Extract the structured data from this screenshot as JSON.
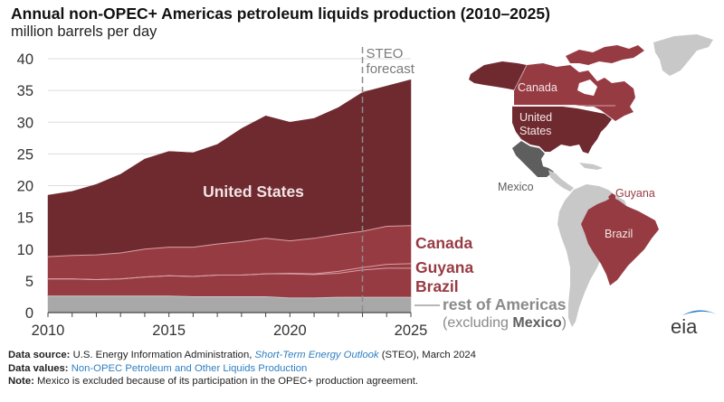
{
  "header": {
    "title": "Annual non-OPEC+ Americas petroleum liquids production (2010–2025)",
    "subtitle": "million barrels per day"
  },
  "chart_data": {
    "type": "area",
    "stacked": true,
    "title": "Annual non-OPEC+ Americas petroleum liquids production (2010–2025)",
    "ylabel": "million barrels per day",
    "xlabel": "",
    "xlim": [
      2010,
      2025
    ],
    "ylim": [
      0,
      40
    ],
    "x_ticks": [
      2010,
      2015,
      2020,
      2025
    ],
    "y_ticks": [
      0,
      5,
      10,
      15,
      20,
      25,
      30,
      35,
      40
    ],
    "grid": true,
    "forecast_start": 2023,
    "forecast_label_line1": "STEO",
    "forecast_label_line2": "forecast",
    "x": [
      2010,
      2011,
      2012,
      2013,
      2014,
      2015,
      2016,
      2017,
      2018,
      2019,
      2020,
      2021,
      2022,
      2023,
      2024,
      2025
    ],
    "series": [
      {
        "name": "rest of Americas",
        "name_line2_prefix": "(excluding ",
        "name_line2_bold": "Mexico",
        "name_line2_suffix": ")",
        "color": "#a8a8a8",
        "values": [
          2.6,
          2.6,
          2.6,
          2.6,
          2.6,
          2.6,
          2.5,
          2.5,
          2.5,
          2.5,
          2.3,
          2.3,
          2.4,
          2.4,
          2.4,
          2.4
        ]
      },
      {
        "name": "Brazil",
        "color": "#973b43",
        "values": [
          2.7,
          2.7,
          2.6,
          2.7,
          3.0,
          3.2,
          3.2,
          3.4,
          3.4,
          3.6,
          3.8,
          3.7,
          3.8,
          4.3,
          4.6,
          4.6
        ]
      },
      {
        "name": "Guyana",
        "color": "#973b43",
        "values": [
          0,
          0,
          0,
          0,
          0,
          0,
          0,
          0,
          0,
          0,
          0.1,
          0.1,
          0.3,
          0.4,
          0.6,
          0.7
        ]
      },
      {
        "name": "Canada",
        "color": "#973b43",
        "values": [
          3.5,
          3.7,
          3.9,
          4.1,
          4.4,
          4.5,
          4.6,
          4.9,
          5.3,
          5.6,
          5.1,
          5.6,
          5.8,
          5.7,
          6.0,
          6.0
        ]
      },
      {
        "name": "United States",
        "color": "#6f2a30",
        "values": [
          9.7,
          10.1,
          11.1,
          12.4,
          14.2,
          15.1,
          14.9,
          15.7,
          17.8,
          19.3,
          18.7,
          18.9,
          20.0,
          21.9,
          22.1,
          23.0
        ]
      }
    ]
  },
  "map": {
    "labels": {
      "canada": "Canada",
      "united_states_line1": "United",
      "united_states_line2": "States",
      "mexico": "Mexico",
      "guyana": "Guyana",
      "brazil": "Brazil"
    },
    "colors": {
      "canada": "#973b43",
      "alaska": "#6f2a30",
      "united_states": "#6f2a30",
      "mexico": "#5e5e5e",
      "brazil": "#973b43",
      "other": "#c8c8c8"
    }
  },
  "logo": {
    "text": "eia",
    "arc_color": "#2a7dc2"
  },
  "footer": {
    "source_label": "Data source:",
    "source_text1": " U.S. Energy Information Administration, ",
    "source_link": "Short-Term Energy Outlook",
    "source_text2": " (STEO), March 2024",
    "values_label": "Data values:",
    "values_link": " Non-OPEC Petroleum and Other Liquids Production",
    "note_label": "Note:",
    "note_text": " Mexico is excluded because of its participation in the OPEC+ production agreement."
  }
}
